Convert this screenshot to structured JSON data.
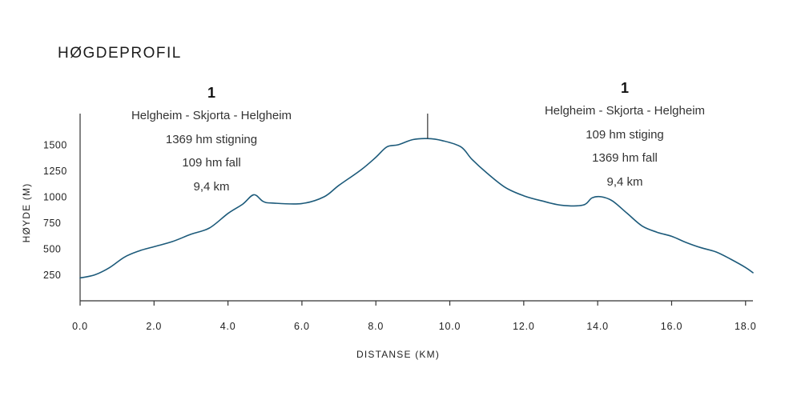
{
  "title": "HØGDEPROFIL",
  "routes": [
    {
      "number": "1",
      "name": "Helgheim - Skjorta - Helgheim",
      "ascent": "1369 hm stigning",
      "descent": "109 hm fall",
      "distance": "9,4 km"
    },
    {
      "number": "1",
      "name": "Helgheim - Skjorta - Helgheim",
      "ascent": "109 hm stiging",
      "descent": "1369 hm fall",
      "distance": "9,4 km"
    }
  ],
  "colors": {
    "line": "#1c5a7a",
    "axis": "#333333",
    "text": "#222222"
  },
  "chart_data": {
    "type": "line",
    "title": "HØGDEPROFIL",
    "xlabel": "DISTANSE (KM)",
    "ylabel": "HØYDE (M)",
    "xlim": [
      0,
      18.2
    ],
    "ylim": [
      0,
      1800
    ],
    "x_ticks": [
      {
        "value": 0,
        "label": "0.0"
      },
      {
        "value": 2,
        "label": "2.0"
      },
      {
        "value": 4,
        "label": "4.0"
      },
      {
        "value": 6,
        "label": "6.0"
      },
      {
        "value": 8,
        "label": "8.0"
      },
      {
        "value": 10,
        "label": "10.0"
      },
      {
        "value": 12,
        "label": "12.0"
      },
      {
        "value": 14,
        "label": "14.0"
      },
      {
        "value": 16,
        "label": "16.0"
      },
      {
        "value": 18,
        "label": "18.0"
      }
    ],
    "y_ticks": [
      {
        "value": 250,
        "label": "250"
      },
      {
        "value": 500,
        "label": "500"
      },
      {
        "value": 750,
        "label": "750"
      },
      {
        "value": 1000,
        "label": "1000"
      },
      {
        "value": 1250,
        "label": "1250"
      },
      {
        "value": 1500,
        "label": "1500"
      }
    ],
    "grid": false,
    "summit_marker_x": 9.4,
    "series": [
      {
        "name": "Høyde",
        "x": [
          0.0,
          0.4,
          0.8,
          1.2,
          1.6,
          2.0,
          2.5,
          3.0,
          3.5,
          4.0,
          4.4,
          4.7,
          4.95,
          5.2,
          6.0,
          6.6,
          7.0,
          7.6,
          8.0,
          8.3,
          8.6,
          9.0,
          9.4,
          9.8,
          10.3,
          10.6,
          11.0,
          11.5,
          12.0,
          12.5,
          13.0,
          13.6,
          13.85,
          14.1,
          14.4,
          14.8,
          15.2,
          15.6,
          16.0,
          16.4,
          16.8,
          17.2,
          17.6,
          18.0,
          18.2
        ],
        "values": [
          220,
          250,
          320,
          420,
          480,
          520,
          570,
          640,
          700,
          840,
          930,
          1020,
          955,
          940,
          935,
          1000,
          1110,
          1260,
          1380,
          1480,
          1500,
          1550,
          1560,
          1540,
          1480,
          1360,
          1230,
          1090,
          1010,
          960,
          920,
          920,
          990,
          1000,
          960,
          840,
          720,
          660,
          620,
          560,
          510,
          470,
          400,
          320,
          270
        ]
      }
    ]
  }
}
